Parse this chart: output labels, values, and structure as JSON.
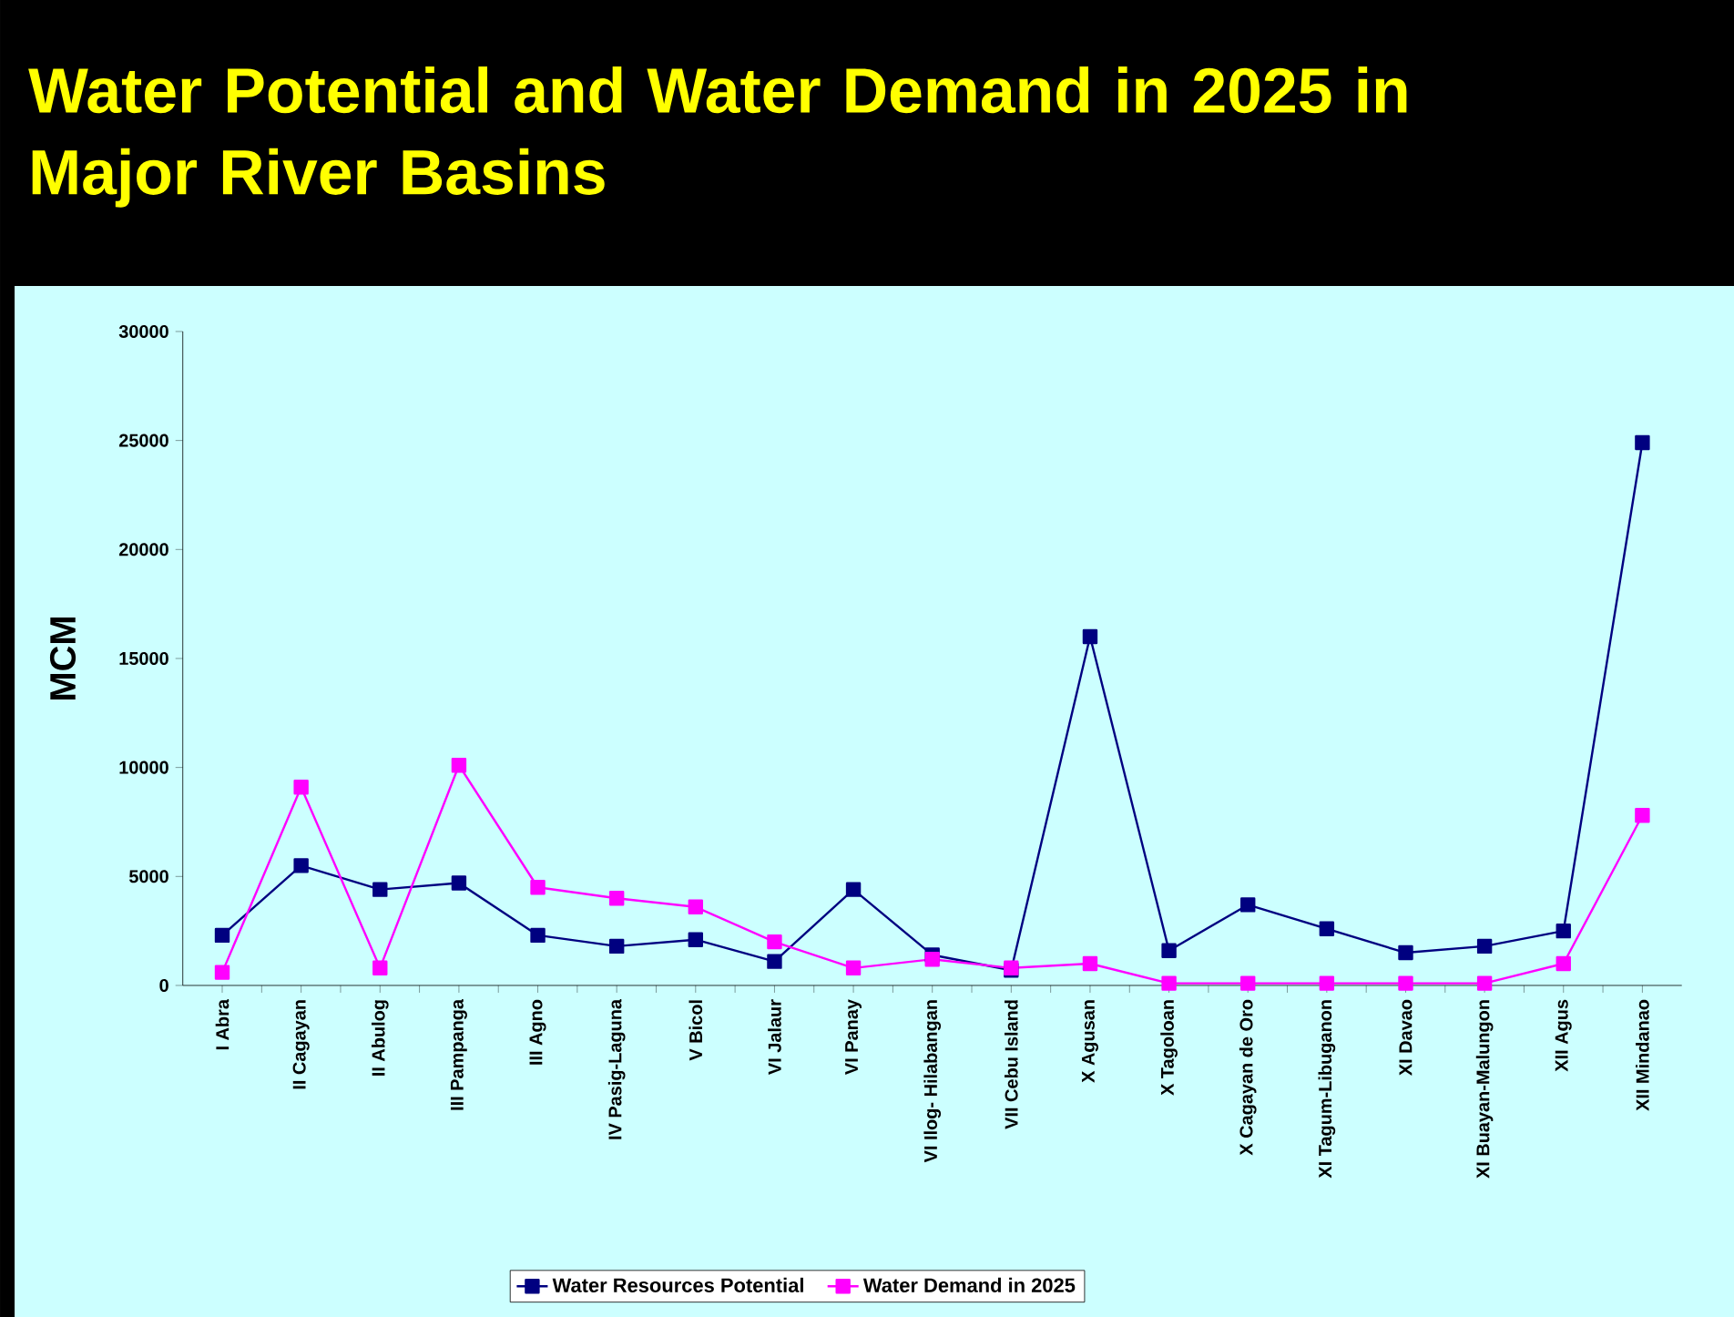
{
  "chart_data": {
    "type": "line",
    "title": "Water Potential and Water Demand in 2025 in Major River Basins",
    "ylabel": "MCM",
    "categories": [
      "I Abra",
      "II Cagayan",
      "II Abulog",
      "III Pampanga",
      "III Agno",
      "IV Pasig-Laguna",
      "V Bicol",
      "VI Jalaur",
      "VI Panay",
      "VI Ilog- Hilabangan",
      "VII Cebu Island",
      "X Agusan",
      "X Tagoloan",
      "X Cagayan de Oro",
      "XI Tagum-Libuganon",
      "XI Davao",
      "XI Buayan-Malungon",
      "XII Agus",
      "XII Mindanao"
    ],
    "series": [
      {
        "name": "Water Resources Potential",
        "color": "#000080",
        "values": [
          2300,
          5500,
          4400,
          4700,
          2300,
          1800,
          2100,
          1100,
          4400,
          1400,
          700,
          16000,
          1600,
          3700,
          2600,
          1500,
          1800,
          2500,
          24900
        ]
      },
      {
        "name": "Water Demand in 2025",
        "color": "#ff00ff",
        "values": [
          600,
          9100,
          800,
          10100,
          4500,
          4000,
          3600,
          2000,
          800,
          1200,
          800,
          1000,
          100,
          100,
          100,
          100,
          100,
          1000,
          7800
        ]
      }
    ],
    "ylim": [
      0,
      30000
    ],
    "yticks": [
      0,
      5000,
      10000,
      15000,
      20000,
      25000,
      30000
    ],
    "marker": "square",
    "line_style": "solid",
    "legend": "bottom",
    "grid": false
  }
}
